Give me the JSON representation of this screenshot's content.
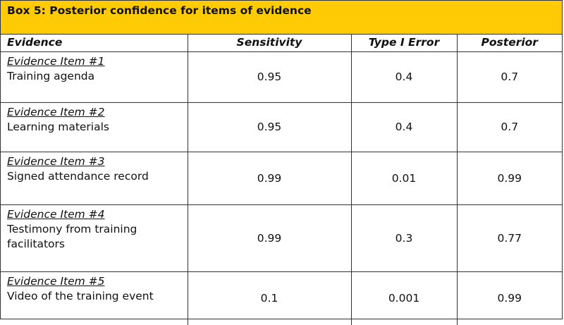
{
  "title": "Box 5: Posterior confidence for items of evidence",
  "columns": [
    "Evidence",
    "Sensitivity",
    "Type I Error",
    "Posterior"
  ],
  "rows": [
    {
      "label": "Evidence Item #1",
      "desc": "Training agenda",
      "sensitivity": "0.95",
      "type1": "0.4",
      "posterior": "0.7"
    },
    {
      "label": "Evidence Item #2",
      "desc": "Learning materials",
      "sensitivity": "0.95",
      "type1": "0.4",
      "posterior": "0.7"
    },
    {
      "label": "Evidence Item #3",
      "desc": "Signed attendance record",
      "sensitivity": "0.99",
      "type1": "0.01",
      "posterior": "0.99"
    },
    {
      "label": "Evidence Item #4",
      "desc": "Testimony from training facilitators",
      "sensitivity": "0.99",
      "type1": "0.3",
      "posterior": "0.77"
    },
    {
      "label": "Evidence Item #5",
      "desc": "Video of the training event",
      "sensitivity": "0.1",
      "type1": "0.001",
      "posterior": "0.99"
    }
  ],
  "colors": {
    "header_bg": "#ffcb05",
    "border": "#333333",
    "text": "#111111"
  }
}
